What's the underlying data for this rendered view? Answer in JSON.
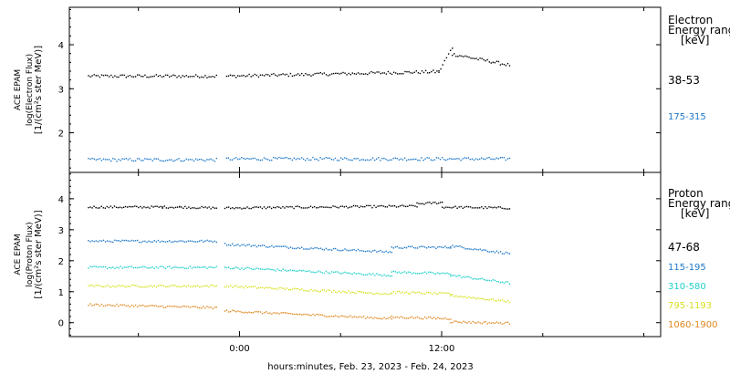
{
  "chart_data": [
    {
      "type": "scatter",
      "panel": "electron",
      "ylabel_lines": [
        "ACE EPAM",
        "log(Electron Flux)",
        "[1/(cm²s ster MeV)]"
      ],
      "yticks": [
        "4",
        "3",
        "2"
      ],
      "ylim": [
        1.1,
        4.85
      ],
      "legend_title": [
        "Electron",
        "Energy ranges",
        "[keV]"
      ],
      "series": [
        {
          "name": "38-53",
          "color": "#000000",
          "segments": [
            {
              "x": [
                -9.0,
                -1.4
              ],
              "y": [
                3.3,
                3.3
              ]
            },
            {
              "x": [
                -0.8,
                11.8
              ],
              "y": [
                3.3,
                3.4
              ]
            },
            {
              "x": [
                11.8,
                12.6
              ],
              "y": [
                3.4,
                3.95
              ]
            },
            {
              "x": [
                12.6,
                16.0
              ],
              "y": [
                3.8,
                3.55
              ]
            }
          ]
        },
        {
          "name": "175-315",
          "color": "#1f78c8",
          "segments": [
            {
              "x": [
                -9.0,
                -1.4
              ],
              "y": [
                1.4,
                1.4
              ]
            },
            {
              "x": [
                -0.8,
                16.0
              ],
              "y": [
                1.42,
                1.42
              ]
            }
          ]
        }
      ]
    },
    {
      "type": "scatter",
      "panel": "proton",
      "ylabel_lines": [
        "ACE EPAM",
        "log(Proton Flux)",
        "[1/(cm²s ster MeV)]"
      ],
      "yticks": [
        "4",
        "3",
        "2",
        "1",
        "0"
      ],
      "ylim": [
        -0.45,
        4.85
      ],
      "legend_title": [
        "Proton",
        "Energy ranges",
        "[keV]"
      ],
      "series": [
        {
          "name": "47-68",
          "color": "#000000",
          "segments": [
            {
              "x": [
                -9.0,
                -4.6
              ],
              "y": [
                3.75,
                3.75
              ]
            },
            {
              "x": [
                -4.6,
                -3.6
              ],
              "y": [
                3.75,
                3.75
              ]
            },
            {
              "x": [
                -3.6,
                -1.4
              ],
              "y": [
                3.75,
                3.72
              ]
            },
            {
              "x": [
                -0.9,
                10.5
              ],
              "y": [
                3.72,
                3.78
              ]
            },
            {
              "x": [
                10.5,
                12.0
              ],
              "y": [
                3.85,
                3.9
              ]
            },
            {
              "x": [
                12.0,
                16.0
              ],
              "y": [
                3.75,
                3.72
              ]
            }
          ]
        },
        {
          "name": "115-195",
          "color": "#1f78c8",
          "segments": [
            {
              "x": [
                -9.0,
                -1.4
              ],
              "y": [
                2.65,
                2.65
              ]
            },
            {
              "x": [
                -0.9,
                9.0
              ],
              "y": [
                2.55,
                2.3
              ]
            },
            {
              "x": [
                9.0,
                12.5
              ],
              "y": [
                2.45,
                2.45
              ]
            },
            {
              "x": [
                12.5,
                16.0
              ],
              "y": [
                2.5,
                2.25
              ]
            }
          ]
        },
        {
          "name": "310-580",
          "color": "#20d0c8",
          "segments": [
            {
              "x": [
                -9.0,
                -1.4
              ],
              "y": [
                1.8,
                1.8
              ]
            },
            {
              "x": [
                -0.9,
                9.0
              ],
              "y": [
                1.8,
                1.55
              ]
            },
            {
              "x": [
                9.0,
                12.5
              ],
              "y": [
                1.65,
                1.6
              ]
            },
            {
              "x": [
                12.5,
                16.0
              ],
              "y": [
                1.55,
                1.3
              ]
            }
          ]
        },
        {
          "name": "795-1193",
          "color": "#d8e020",
          "segments": [
            {
              "x": [
                -9.0,
                -1.4
              ],
              "y": [
                1.2,
                1.2
              ]
            },
            {
              "x": [
                -0.9,
                9.0
              ],
              "y": [
                1.2,
                0.95
              ]
            },
            {
              "x": [
                9.0,
                12.5
              ],
              "y": [
                1.0,
                0.95
              ]
            },
            {
              "x": [
                12.5,
                16.0
              ],
              "y": [
                0.9,
                0.7
              ]
            }
          ]
        },
        {
          "name": "1060-1900",
          "color": "#e08820",
          "segments": [
            {
              "x": [
                -9.0,
                -1.4
              ],
              "y": [
                0.6,
                0.5
              ]
            },
            {
              "x": [
                -0.9,
                9.0
              ],
              "y": [
                0.4,
                0.15
              ]
            },
            {
              "x": [
                9.0,
                12.5
              ],
              "y": [
                0.2,
                0.15
              ]
            },
            {
              "x": [
                12.5,
                16.0
              ],
              "y": [
                0.05,
                0.0
              ]
            }
          ]
        }
      ]
    }
  ],
  "xaxis": {
    "xlim": [
      -10.1,
      25.0
    ],
    "ticks": [
      {
        "value": 0,
        "label": "0:00"
      },
      {
        "value": 12,
        "label": "12:00"
      }
    ],
    "minor_ticks": [
      -6,
      6,
      18,
      24
    ],
    "label": "hours:minutes, Feb. 23, 2023 - Feb. 24, 2023"
  }
}
